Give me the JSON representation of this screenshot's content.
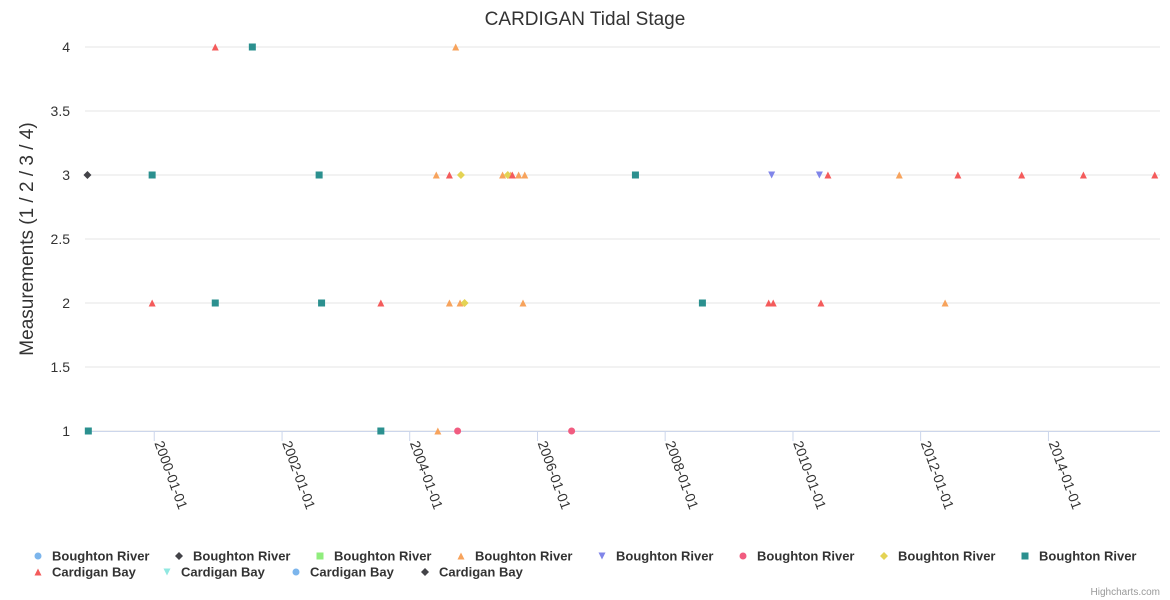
{
  "chart_data": {
    "type": "scatter",
    "title": "CARDIGAN Tidal Stage",
    "xlabel": "",
    "ylabel": "Measurements (1 / 2 / 3 / 4)",
    "ylim": [
      1,
      4
    ],
    "yticks": [
      "1",
      "1.5",
      "2",
      "2.5",
      "3",
      "3.5",
      "4"
    ],
    "xlim": [
      "1998-12-01",
      "2015-10-01"
    ],
    "xticks": [
      "2000-01-01",
      "2002-01-01",
      "2004-01-01",
      "2006-01-01",
      "2008-01-01",
      "2010-01-01",
      "2012-01-01",
      "2014-01-01"
    ],
    "grid": true,
    "legend_position": "bottom",
    "series": [
      {
        "name": "Boughton River",
        "color": "#7cb5ec",
        "marker": "circle",
        "points": []
      },
      {
        "name": "Boughton River",
        "color": "#434348",
        "marker": "diamond",
        "points": [
          {
            "x": "1998-12-15",
            "y": 3
          }
        ]
      },
      {
        "name": "Boughton River",
        "color": "#90ed7d",
        "marker": "square",
        "points": []
      },
      {
        "name": "Boughton River",
        "color": "#f7a35c",
        "marker": "triangle",
        "points": [
          {
            "x": "2004-06-01",
            "y": 3
          },
          {
            "x": "2004-06-10",
            "y": 1
          },
          {
            "x": "2004-08-15",
            "y": 2
          },
          {
            "x": "2004-09-20",
            "y": 4
          },
          {
            "x": "2004-10-15",
            "y": 2
          },
          {
            "x": "2005-06-15",
            "y": 3
          },
          {
            "x": "2005-08-01",
            "y": 3
          },
          {
            "x": "2005-09-15",
            "y": 3
          },
          {
            "x": "2005-10-10",
            "y": 2
          },
          {
            "x": "2005-10-20",
            "y": 3
          },
          {
            "x": "2011-09-01",
            "y": 3
          },
          {
            "x": "2012-05-20",
            "y": 2
          }
        ]
      },
      {
        "name": "Boughton River",
        "color": "#8085e9",
        "marker": "triangle-down",
        "points": [
          {
            "x": "2009-09-01",
            "y": 3
          },
          {
            "x": "2010-06-01",
            "y": 3
          }
        ]
      },
      {
        "name": "Boughton River",
        "color": "#f15c80",
        "marker": "circle",
        "points": [
          {
            "x": "2004-10-01",
            "y": 1
          },
          {
            "x": "2006-07-15",
            "y": 1
          }
        ]
      },
      {
        "name": "Boughton River",
        "color": "#e4d354",
        "marker": "diamond",
        "points": [
          {
            "x": "2004-10-20",
            "y": 3
          },
          {
            "x": "2004-11-10",
            "y": 2
          },
          {
            "x": "2005-07-15",
            "y": 3
          }
        ]
      },
      {
        "name": "Boughton River",
        "color": "#2b908f",
        "marker": "square",
        "points": [
          {
            "x": "1998-12-20",
            "y": 1
          },
          {
            "x": "1999-12-20",
            "y": 3
          },
          {
            "x": "2000-12-15",
            "y": 2
          },
          {
            "x": "2001-07-15",
            "y": 4
          },
          {
            "x": "2002-08-01",
            "y": 3
          },
          {
            "x": "2002-08-15",
            "y": 2
          },
          {
            "x": "2003-07-20",
            "y": 1
          },
          {
            "x": "2007-07-15",
            "y": 3
          },
          {
            "x": "2008-08-01",
            "y": 2
          }
        ]
      },
      {
        "name": "Cardigan Bay",
        "color": "#f45b5b",
        "marker": "triangle",
        "points": [
          {
            "x": "1999-12-20",
            "y": 2
          },
          {
            "x": "2000-12-15",
            "y": 4
          },
          {
            "x": "2003-07-20",
            "y": 2
          },
          {
            "x": "2004-08-15",
            "y": 3
          },
          {
            "x": "2005-08-10",
            "y": 3
          },
          {
            "x": "2009-08-15",
            "y": 2
          },
          {
            "x": "2009-09-10",
            "y": 2
          },
          {
            "x": "2010-06-10",
            "y": 2
          },
          {
            "x": "2010-07-20",
            "y": 3
          },
          {
            "x": "2012-08-01",
            "y": 3
          },
          {
            "x": "2013-08-01",
            "y": 3
          },
          {
            "x": "2014-07-20",
            "y": 3
          },
          {
            "x": "2015-09-01",
            "y": 3
          }
        ]
      },
      {
        "name": "Cardigan Bay",
        "color": "#91e8e1",
        "marker": "triangle-down",
        "points": []
      },
      {
        "name": "Cardigan Bay",
        "color": "#7cb5ec",
        "marker": "circle",
        "points": []
      },
      {
        "name": "Cardigan Bay",
        "color": "#434348",
        "marker": "diamond",
        "points": []
      }
    ]
  },
  "credits": "Highcharts.com"
}
